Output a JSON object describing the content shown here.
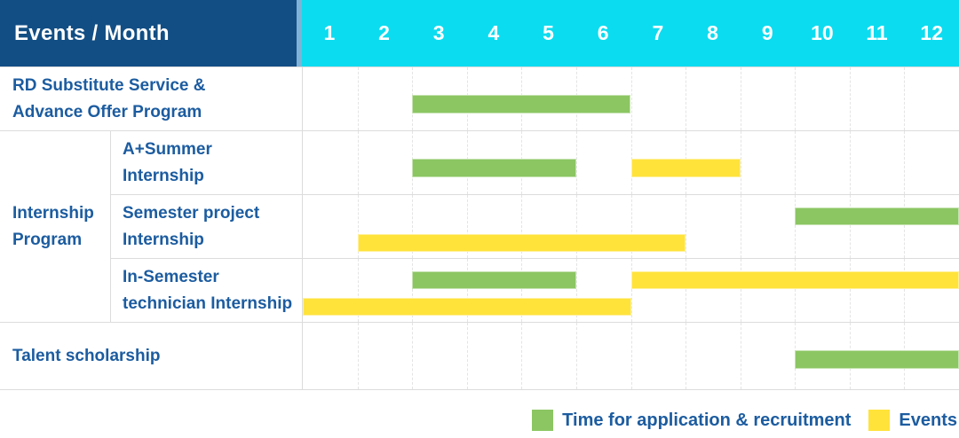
{
  "colors": {
    "header_bg": "#124E84",
    "months_bg": "#0CDCF0",
    "header_separator": "#7FB2D6",
    "label_text": "#1C5CA0",
    "grid_line": "#DCDCDC",
    "month_line": "#E4E4E4"
  },
  "chart_data": {
    "type": "gantt",
    "title": "Events / Month",
    "months": [
      "1",
      "2",
      "3",
      "4",
      "5",
      "6",
      "7",
      "8",
      "9",
      "10",
      "11",
      "12"
    ],
    "x_axis_label": "Month",
    "x_range": [
      1,
      12
    ],
    "grid": true,
    "legend_position": "bottom-right",
    "series": [
      {
        "key": "application",
        "name": "Time for application & recruitment",
        "color": "#8CC663"
      },
      {
        "key": "event",
        "name": "Events",
        "color": "#FFE33B"
      }
    ],
    "group": {
      "label": "Internship Program",
      "label_lines": [
        "Internship",
        "Program"
      ],
      "row_span": [
        1,
        3
      ]
    },
    "rows": [
      {
        "id": "rd-substitute-service",
        "label": "RD Substitute Service & Advance Offer Program",
        "label_lines": [
          "RD Substitute Service &",
          "Advance Offer Program"
        ],
        "bars": [
          {
            "series": "application",
            "from_month": 3,
            "to_month": 6,
            "lane": "single"
          }
        ]
      },
      {
        "id": "a-plus-summer-internship",
        "label": "A+Summer Internship",
        "label_lines": [
          "A+Summer",
          "Internship"
        ],
        "bars": [
          {
            "series": "application",
            "from_month": 3,
            "to_month": 5,
            "lane": "single"
          },
          {
            "series": "event",
            "from_month": 7,
            "to_month": 8,
            "lane": "single"
          }
        ]
      },
      {
        "id": "semester-project-internship",
        "label": "Semester project Internship",
        "label_lines": [
          "Semester project",
          "Internship"
        ],
        "bars": [
          {
            "series": "application",
            "from_month": 10,
            "to_month": 12,
            "lane": "top"
          },
          {
            "series": "event",
            "from_month": 2,
            "to_month": 7,
            "lane": "bottom"
          }
        ]
      },
      {
        "id": "in-semester-technician-internship",
        "label": "In-Semester technician Internship",
        "label_lines": [
          "In-Semester",
          "technician Internship"
        ],
        "bars": [
          {
            "series": "application",
            "from_month": 3,
            "to_month": 5,
            "lane": "top"
          },
          {
            "series": "event",
            "from_month": 7,
            "to_month": 12,
            "lane": "top"
          },
          {
            "series": "event",
            "from_month": 1,
            "to_month": 6,
            "lane": "bottom"
          }
        ]
      },
      {
        "id": "talent-scholarship",
        "label": "Talent scholarship",
        "label_lines": [
          "Talent scholarship"
        ],
        "bars": [
          {
            "series": "application",
            "from_month": 10,
            "to_month": 12,
            "lane": "single"
          }
        ]
      }
    ]
  }
}
